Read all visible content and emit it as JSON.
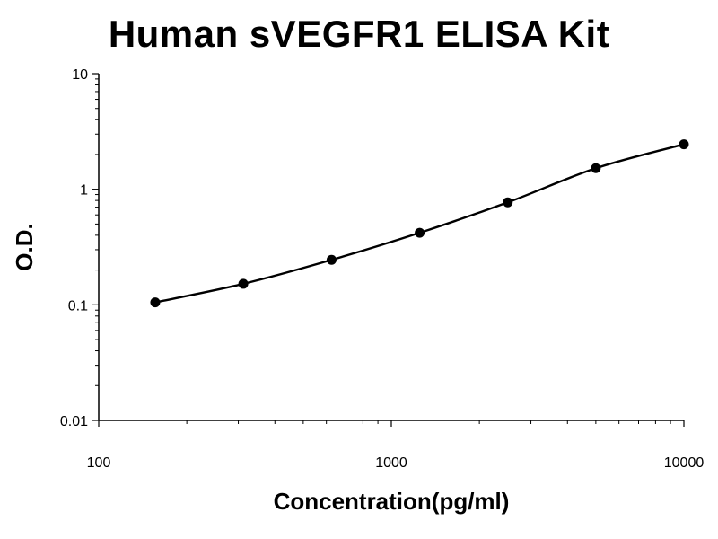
{
  "chart_data": {
    "type": "scatter",
    "title": "Human sVEGFR1 ELISA Kit",
    "xlabel": "Concentration(pg/ml)",
    "ylabel": "O.D.",
    "xscale": "log",
    "yscale": "log",
    "xlim": [
      100,
      10000
    ],
    "ylim": [
      0.01,
      10
    ],
    "xticks": [
      "100",
      "1000",
      "10000"
    ],
    "yticks": [
      "10",
      "1",
      "0.1",
      "0.01"
    ],
    "grid": false,
    "legend": "none",
    "point_color": "#000000",
    "line_color": "#000000",
    "series": [
      {
        "x": [
          156,
          312,
          625,
          1250,
          2500,
          5000,
          10000
        ],
        "y": [
          0.105,
          0.152,
          0.245,
          0.42,
          0.77,
          1.52,
          2.45
        ],
        "fit_curve": true
      }
    ]
  }
}
